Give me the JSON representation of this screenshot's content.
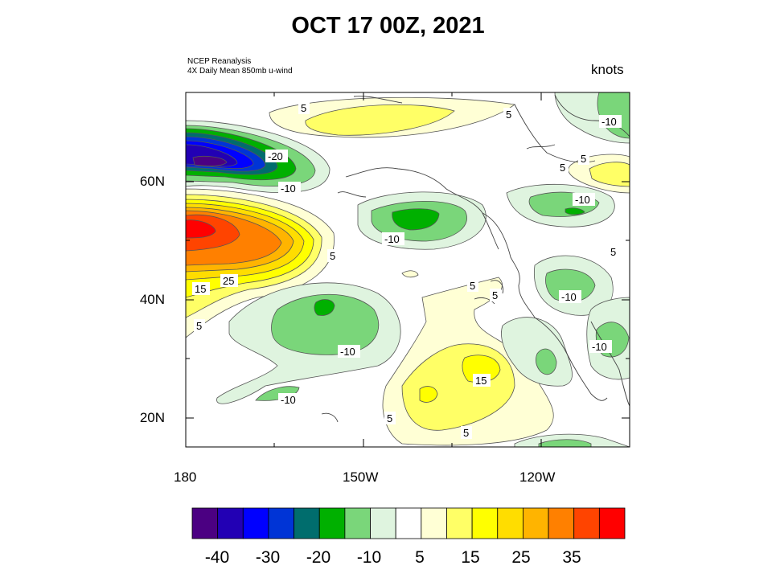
{
  "header": {
    "title": "OCT 17 00Z, 2021",
    "source_line1": "NCEP Reanalysis",
    "source_line2": "4X Daily Mean 850mb u-wind",
    "units": "knots"
  },
  "axes": {
    "lat_labels": [
      "60N",
      "40N",
      "20N"
    ],
    "lon_labels": [
      "180",
      "150W",
      "120W"
    ]
  },
  "contour_labels": [
    "5",
    "5",
    "-10",
    "-20",
    "-10",
    "5",
    "5",
    "-10",
    "-10",
    "5",
    "15",
    "25",
    "5",
    "5",
    "5",
    "5",
    "-10",
    "-10",
    "-10",
    "15",
    "-10",
    "5",
    "5"
  ],
  "colorbar": {
    "colors": [
      "#4b0082",
      "#2200b4",
      "#0000ff",
      "#0034d6",
      "#006d6d",
      "#00b000",
      "#7ad67a",
      "#dff4df",
      "#ffffff",
      "#ffffd5",
      "#ffff66",
      "#ffff00",
      "#ffdd00",
      "#ffb400",
      "#ff8000",
      "#ff4400",
      "#ff0000"
    ],
    "tick_labels": [
      "-40",
      "-30",
      "-20",
      "-10",
      "5",
      "15",
      "25",
      "35"
    ]
  }
}
